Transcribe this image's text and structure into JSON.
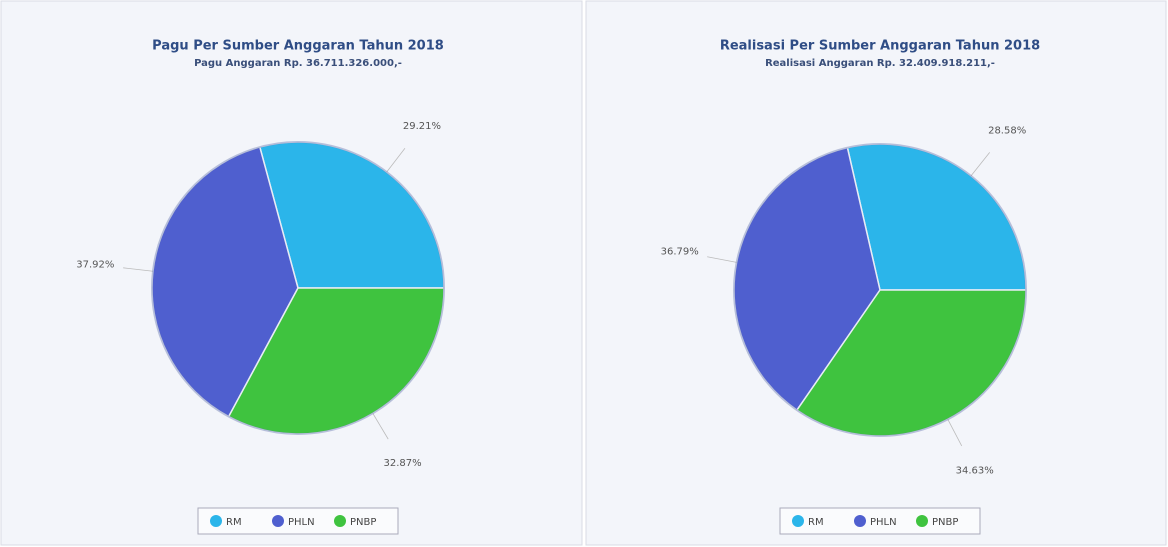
{
  "chart_data": [
    {
      "type": "pie",
      "title": "Pagu Per Sumber Anggaran Tahun 2018",
      "subtitle": "Pagu Anggaran Rp. 36.711.326.000,-",
      "categories": [
        "RM",
        "PHLN",
        "PNBP"
      ],
      "values": [
        29.21,
        37.92,
        32.87
      ],
      "value_labels": [
        "29.21%",
        "37.92%",
        "32.87%"
      ],
      "colors": [
        "#2bb5ea",
        "#4f5fcf",
        "#3fc33f"
      ],
      "legend": "bottom"
    },
    {
      "type": "pie",
      "title": "Realisasi Per Sumber Anggaran Tahun 2018",
      "subtitle": "Realisasi Anggaran Rp. 32.409.918.211,-",
      "categories": [
        "RM",
        "PHLN",
        "PNBP"
      ],
      "values": [
        28.58,
        36.79,
        34.63
      ],
      "value_labels": [
        "28.58%",
        "36.79%",
        "34.63%"
      ],
      "colors": [
        "#2bb5ea",
        "#4f5fcf",
        "#3fc33f"
      ],
      "legend": "bottom"
    }
  ]
}
